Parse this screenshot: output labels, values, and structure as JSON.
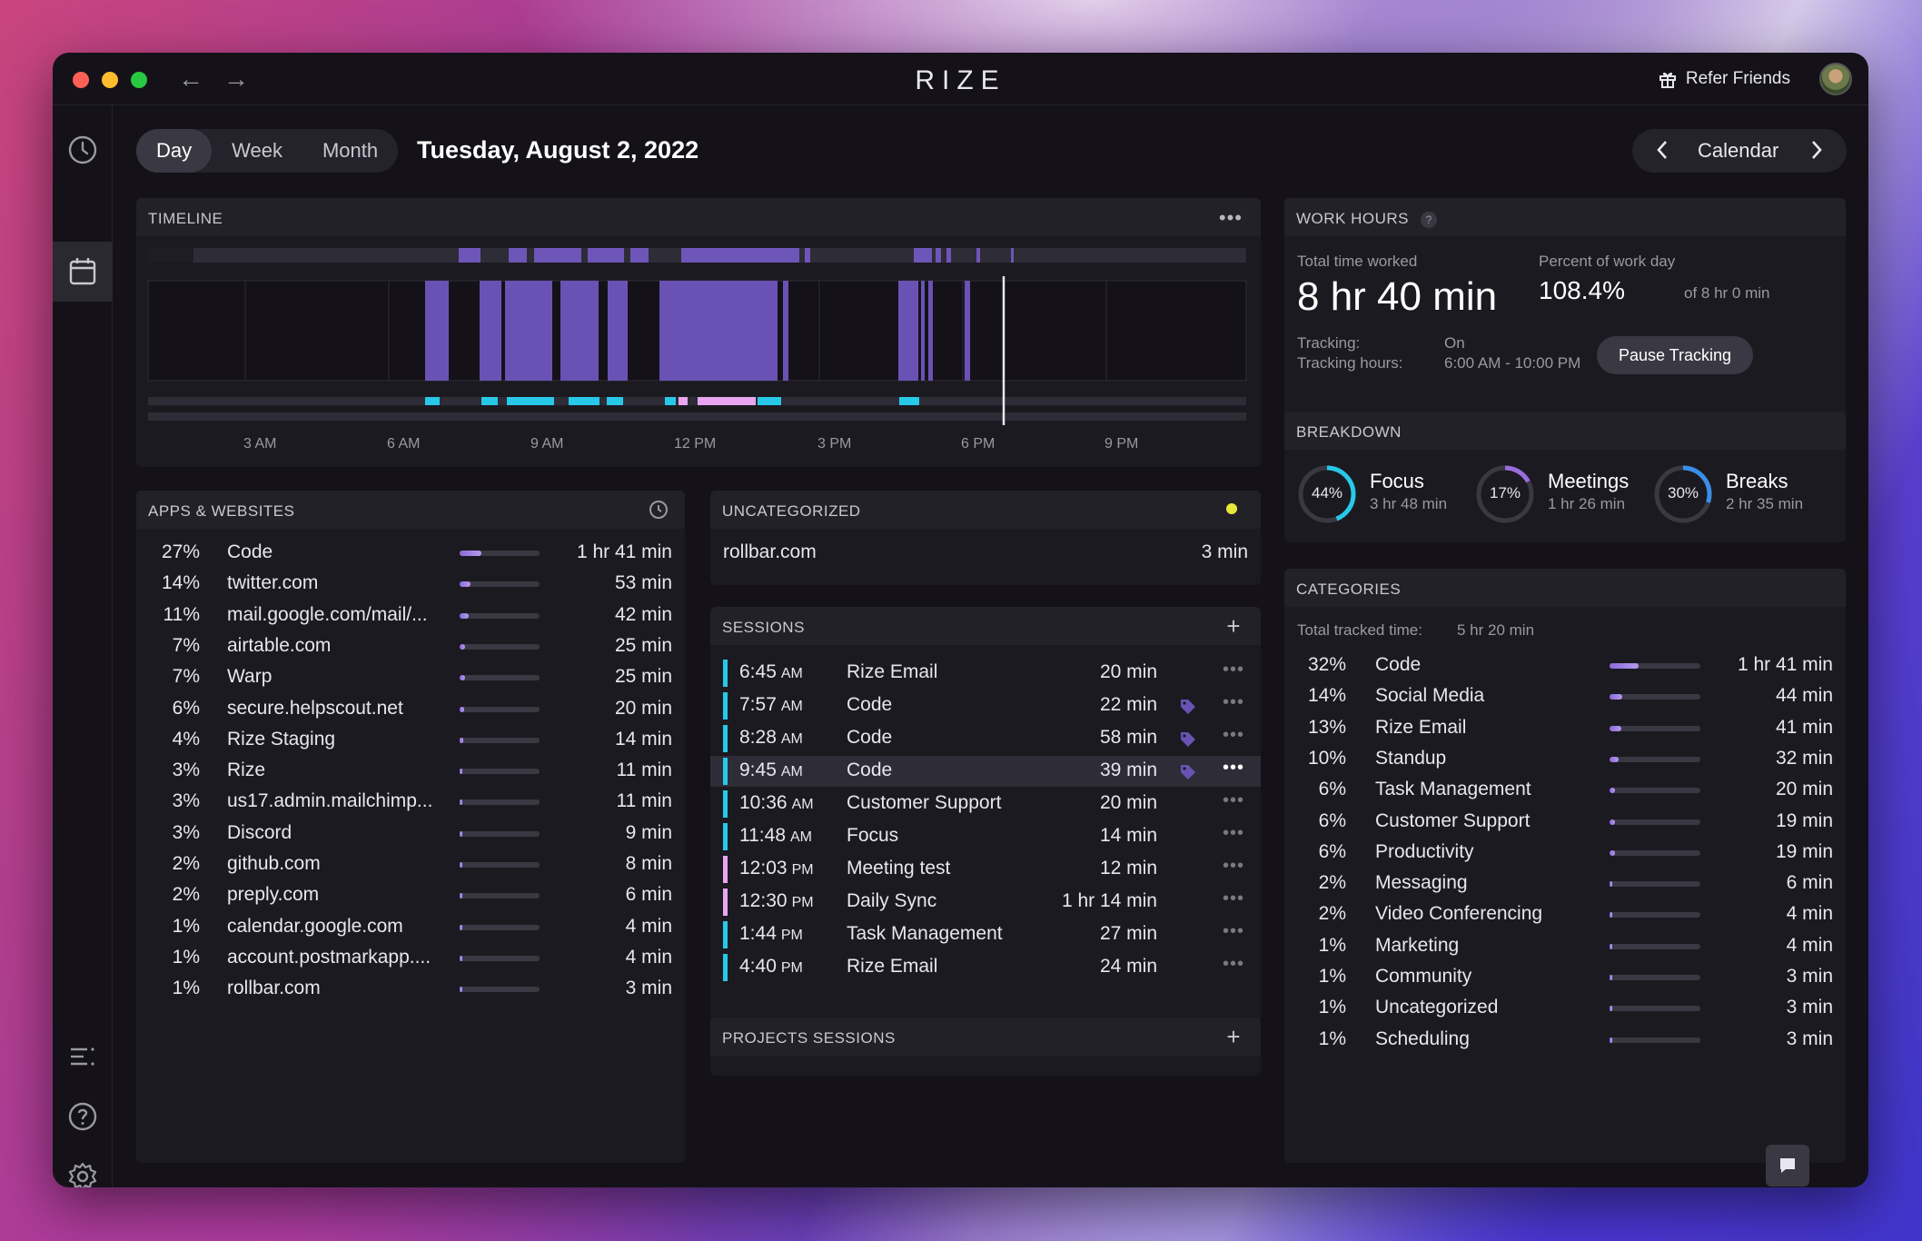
{
  "app": {
    "brand": "RIZE",
    "refer": "Refer Friends"
  },
  "view": {
    "tabs": [
      "Day",
      "Week",
      "Month"
    ],
    "active": "Day",
    "date": "Tuesday, August 2, 2022",
    "calendar": "Calendar"
  },
  "timeline": {
    "title": "TIMELINE",
    "hours": [
      "3 AM",
      "6 AM",
      "9 AM",
      "12 PM",
      "3 PM",
      "6 PM",
      "9 PM"
    ]
  },
  "work_hours": {
    "title": "WORK HOURS",
    "total_label": "Total time worked",
    "total_value": "8 hr 40 min",
    "percent_label": "Percent of work day",
    "percent_value": "108.4%",
    "percent_suffix": "of 8 hr 0 min",
    "tracking_label": "Tracking:",
    "tracking_value": "On",
    "tracking_hours_label": "Tracking hours:",
    "tracking_hours_value": "6:00 AM - 10:00 PM",
    "pause_button": "Pause Tracking"
  },
  "breakdown": {
    "title": "BREAKDOWN",
    "items": [
      {
        "pct": "44%",
        "name": "Focus",
        "time": "3 hr 48 min",
        "fraction": 0.44,
        "color": "#27c8e8"
      },
      {
        "pct": "17%",
        "name": "Meetings",
        "time": "1 hr 26 min",
        "fraction": 0.17,
        "color": "#9b6ce0"
      },
      {
        "pct": "30%",
        "name": "Breaks",
        "time": "2 hr 35 min",
        "fraction": 0.3,
        "color": "#3a8ee8"
      }
    ]
  },
  "apps": {
    "title": "APPS & WEBSITES",
    "items": [
      {
        "pct": "27%",
        "name": "Code",
        "time": "1 hr 41 min",
        "fraction": 0.27
      },
      {
        "pct": "14%",
        "name": "twitter.com",
        "time": "53 min",
        "fraction": 0.14
      },
      {
        "pct": "11%",
        "name": "mail.google.com/mail/...",
        "time": "42 min",
        "fraction": 0.11
      },
      {
        "pct": "7%",
        "name": "airtable.com",
        "time": "25 min",
        "fraction": 0.07
      },
      {
        "pct": "7%",
        "name": "Warp",
        "time": "25 min",
        "fraction": 0.07
      },
      {
        "pct": "6%",
        "name": "secure.helpscout.net",
        "time": "20 min",
        "fraction": 0.06
      },
      {
        "pct": "4%",
        "name": "Rize Staging",
        "time": "14 min",
        "fraction": 0.04
      },
      {
        "pct": "3%",
        "name": "Rize",
        "time": "11 min",
        "fraction": 0.03
      },
      {
        "pct": "3%",
        "name": "us17.admin.mailchimp...",
        "time": "11 min",
        "fraction": 0.03
      },
      {
        "pct": "3%",
        "name": "Discord",
        "time": "9 min",
        "fraction": 0.03
      },
      {
        "pct": "2%",
        "name": "github.com",
        "time": "8 min",
        "fraction": 0.02
      },
      {
        "pct": "2%",
        "name": "preply.com",
        "time": "6 min",
        "fraction": 0.02
      },
      {
        "pct": "1%",
        "name": "calendar.google.com",
        "time": "4 min",
        "fraction": 0.01
      },
      {
        "pct": "1%",
        "name": "account.postmarkapp....",
        "time": "4 min",
        "fraction": 0.01
      },
      {
        "pct": "1%",
        "name": "rollbar.com",
        "time": "3 min",
        "fraction": 0.01
      }
    ]
  },
  "uncategorized": {
    "title": "UNCATEGORIZED",
    "name": "rollbar.com",
    "time": "3 min"
  },
  "sessions": {
    "title": "SESSIONS",
    "items": [
      {
        "time": "6:45",
        "ampm": "AM",
        "name": "Rize Email",
        "dur": "20 min",
        "color": "#27c8e8",
        "tag": false
      },
      {
        "time": "7:57",
        "ampm": "AM",
        "name": "Code",
        "dur": "22 min",
        "color": "#27c8e8",
        "tag": true
      },
      {
        "time": "8:28",
        "ampm": "AM",
        "name": "Code",
        "dur": "58 min",
        "color": "#27c8e8",
        "tag": true
      },
      {
        "time": "9:45",
        "ampm": "AM",
        "name": "Code",
        "dur": "39 min",
        "color": "#27c8e8",
        "tag": true
      },
      {
        "time": "10:36",
        "ampm": "AM",
        "name": "Customer Support",
        "dur": "20 min",
        "color": "#27c8e8",
        "tag": false
      },
      {
        "time": "11:48",
        "ampm": "AM",
        "name": "Focus",
        "dur": "14 min",
        "color": "#27c8e8",
        "tag": false
      },
      {
        "time": "12:03",
        "ampm": "PM",
        "name": "Meeting test",
        "dur": "12 min",
        "color": "#e8a6f0",
        "tag": false
      },
      {
        "time": "12:30",
        "ampm": "PM",
        "name": "Daily Sync",
        "dur": "1 hr 14 min",
        "color": "#e8a6f0",
        "tag": false
      },
      {
        "time": "1:44",
        "ampm": "PM",
        "name": "Task Management",
        "dur": "27 min",
        "color": "#27c8e8",
        "tag": false
      },
      {
        "time": "4:40",
        "ampm": "PM",
        "name": "Rize Email",
        "dur": "24 min",
        "color": "#27c8e8",
        "tag": false
      }
    ]
  },
  "projects": {
    "title": "PROJECTS SESSIONS"
  },
  "categories": {
    "title": "CATEGORIES",
    "total_label": "Total tracked time:",
    "total_value": "5 hr 20 min",
    "items": [
      {
        "pct": "32%",
        "name": "Code",
        "time": "1 hr 41 min",
        "fraction": 0.32
      },
      {
        "pct": "14%",
        "name": "Social Media",
        "time": "44 min",
        "fraction": 0.14
      },
      {
        "pct": "13%",
        "name": "Rize Email",
        "time": "41 min",
        "fraction": 0.13
      },
      {
        "pct": "10%",
        "name": "Standup",
        "time": "32 min",
        "fraction": 0.1
      },
      {
        "pct": "6%",
        "name": "Task Management",
        "time": "20 min",
        "fraction": 0.06
      },
      {
        "pct": "6%",
        "name": "Customer Support",
        "time": "19 min",
        "fraction": 0.06
      },
      {
        "pct": "6%",
        "name": "Productivity",
        "time": "19 min",
        "fraction": 0.06
      },
      {
        "pct": "2%",
        "name": "Messaging",
        "time": "6 min",
        "fraction": 0.02
      },
      {
        "pct": "2%",
        "name": "Video Conferencing",
        "time": "4 min",
        "fraction": 0.02
      },
      {
        "pct": "1%",
        "name": "Marketing",
        "time": "4 min",
        "fraction": 0.01
      },
      {
        "pct": "1%",
        "name": "Community",
        "time": "3 min",
        "fraction": 0.01
      },
      {
        "pct": "1%",
        "name": "Uncategorized",
        "time": "3 min",
        "fraction": 0.01
      },
      {
        "pct": "1%",
        "name": "Scheduling",
        "time": "3 min",
        "fraction": 0.01
      }
    ]
  },
  "colors": {
    "accent": "#8b6ad9",
    "focus": "#27c8e8",
    "meeting": "#e8a6f0",
    "uncategorized_dot": "#e8e83a"
  }
}
